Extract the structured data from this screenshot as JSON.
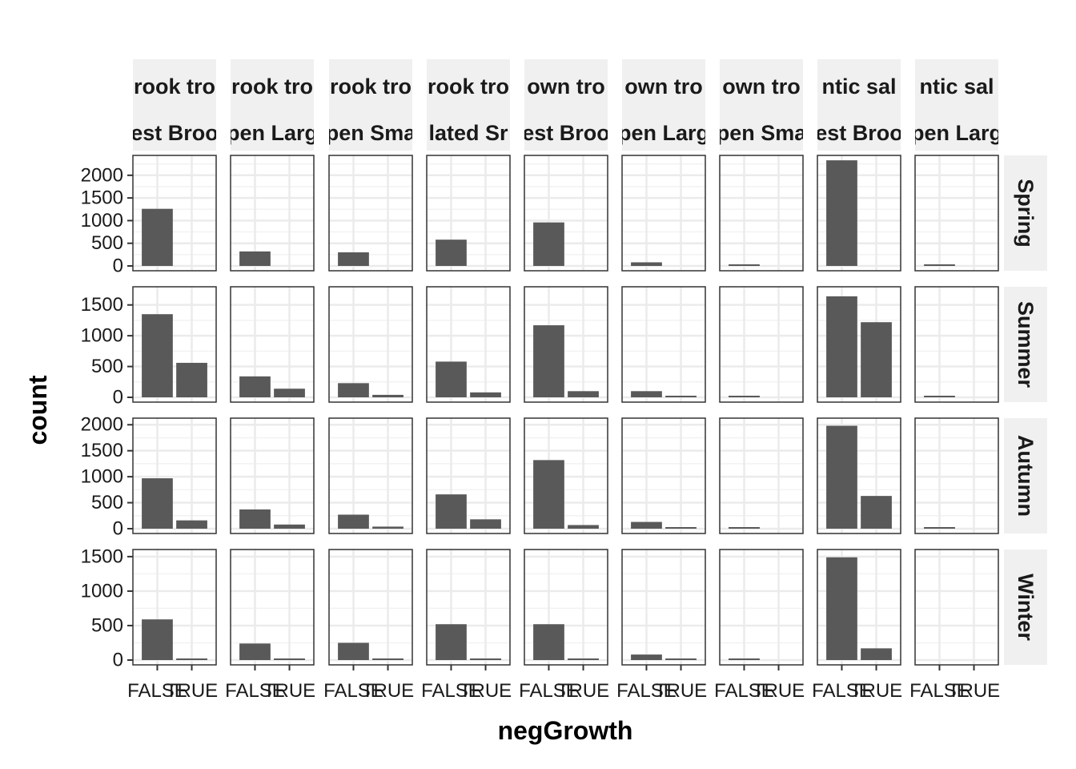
{
  "chart_data": {
    "type": "bar",
    "xlabel": "negGrowth",
    "ylabel": "count",
    "categories": [
      "FALSE",
      "TRUE"
    ],
    "col_facets": [
      {
        "line1": "rook tro",
        "line2": "est Broo"
      },
      {
        "line1": "rook tro",
        "line2": "pen Larg"
      },
      {
        "line1": "rook tro",
        "line2": "pen Sma"
      },
      {
        "line1": "rook tro",
        "line2": "lated Sr"
      },
      {
        "line1": "own tro",
        "line2": "est Broo"
      },
      {
        "line1": "own tro",
        "line2": "pen Larg"
      },
      {
        "line1": "own tro",
        "line2": "pen Sma"
      },
      {
        "line1": "ntic sal",
        "line2": "est Broo"
      },
      {
        "line1": "ntic sal",
        "line2": "pen Larg"
      }
    ],
    "row_facets": [
      {
        "label": "Spring",
        "ylim": [
          0,
          2350
        ],
        "yticks": [
          0,
          500,
          1000,
          1500,
          2000
        ]
      },
      {
        "label": "Summer",
        "ylim": [
          0,
          1730
        ],
        "yticks": [
          0,
          500,
          1000,
          1500
        ]
      },
      {
        "label": "Autumn",
        "ylim": [
          0,
          2050
        ],
        "yticks": [
          0,
          500,
          1000,
          1500,
          2000
        ]
      },
      {
        "label": "Winter",
        "ylim": [
          0,
          1545
        ],
        "yticks": [
          0,
          500,
          1000,
          1500
        ]
      }
    ],
    "values": [
      [
        [
          1260,
          0
        ],
        [
          320,
          0
        ],
        [
          300,
          0
        ],
        [
          580,
          0
        ],
        [
          960,
          0
        ],
        [
          80,
          0
        ],
        [
          25,
          0
        ],
        [
          2330,
          0
        ],
        [
          5,
          0
        ]
      ],
      [
        [
          1350,
          560
        ],
        [
          340,
          140
        ],
        [
          230,
          40
        ],
        [
          580,
          80
        ],
        [
          1170,
          100
        ],
        [
          100,
          5
        ],
        [
          25,
          0
        ],
        [
          1640,
          1220
        ],
        [
          5,
          0
        ]
      ],
      [
        [
          970,
          160
        ],
        [
          370,
          80
        ],
        [
          270,
          40
        ],
        [
          660,
          180
        ],
        [
          1320,
          70
        ],
        [
          130,
          20
        ],
        [
          30,
          0
        ],
        [
          1980,
          630
        ],
        [
          20,
          0
        ]
      ],
      [
        [
          590,
          10
        ],
        [
          240,
          20
        ],
        [
          250,
          10
        ],
        [
          520,
          20
        ],
        [
          520,
          20
        ],
        [
          80,
          10
        ],
        [
          20,
          0
        ],
        [
          1490,
          170
        ],
        [
          0,
          0
        ]
      ]
    ],
    "grid": true,
    "legend": "none"
  }
}
